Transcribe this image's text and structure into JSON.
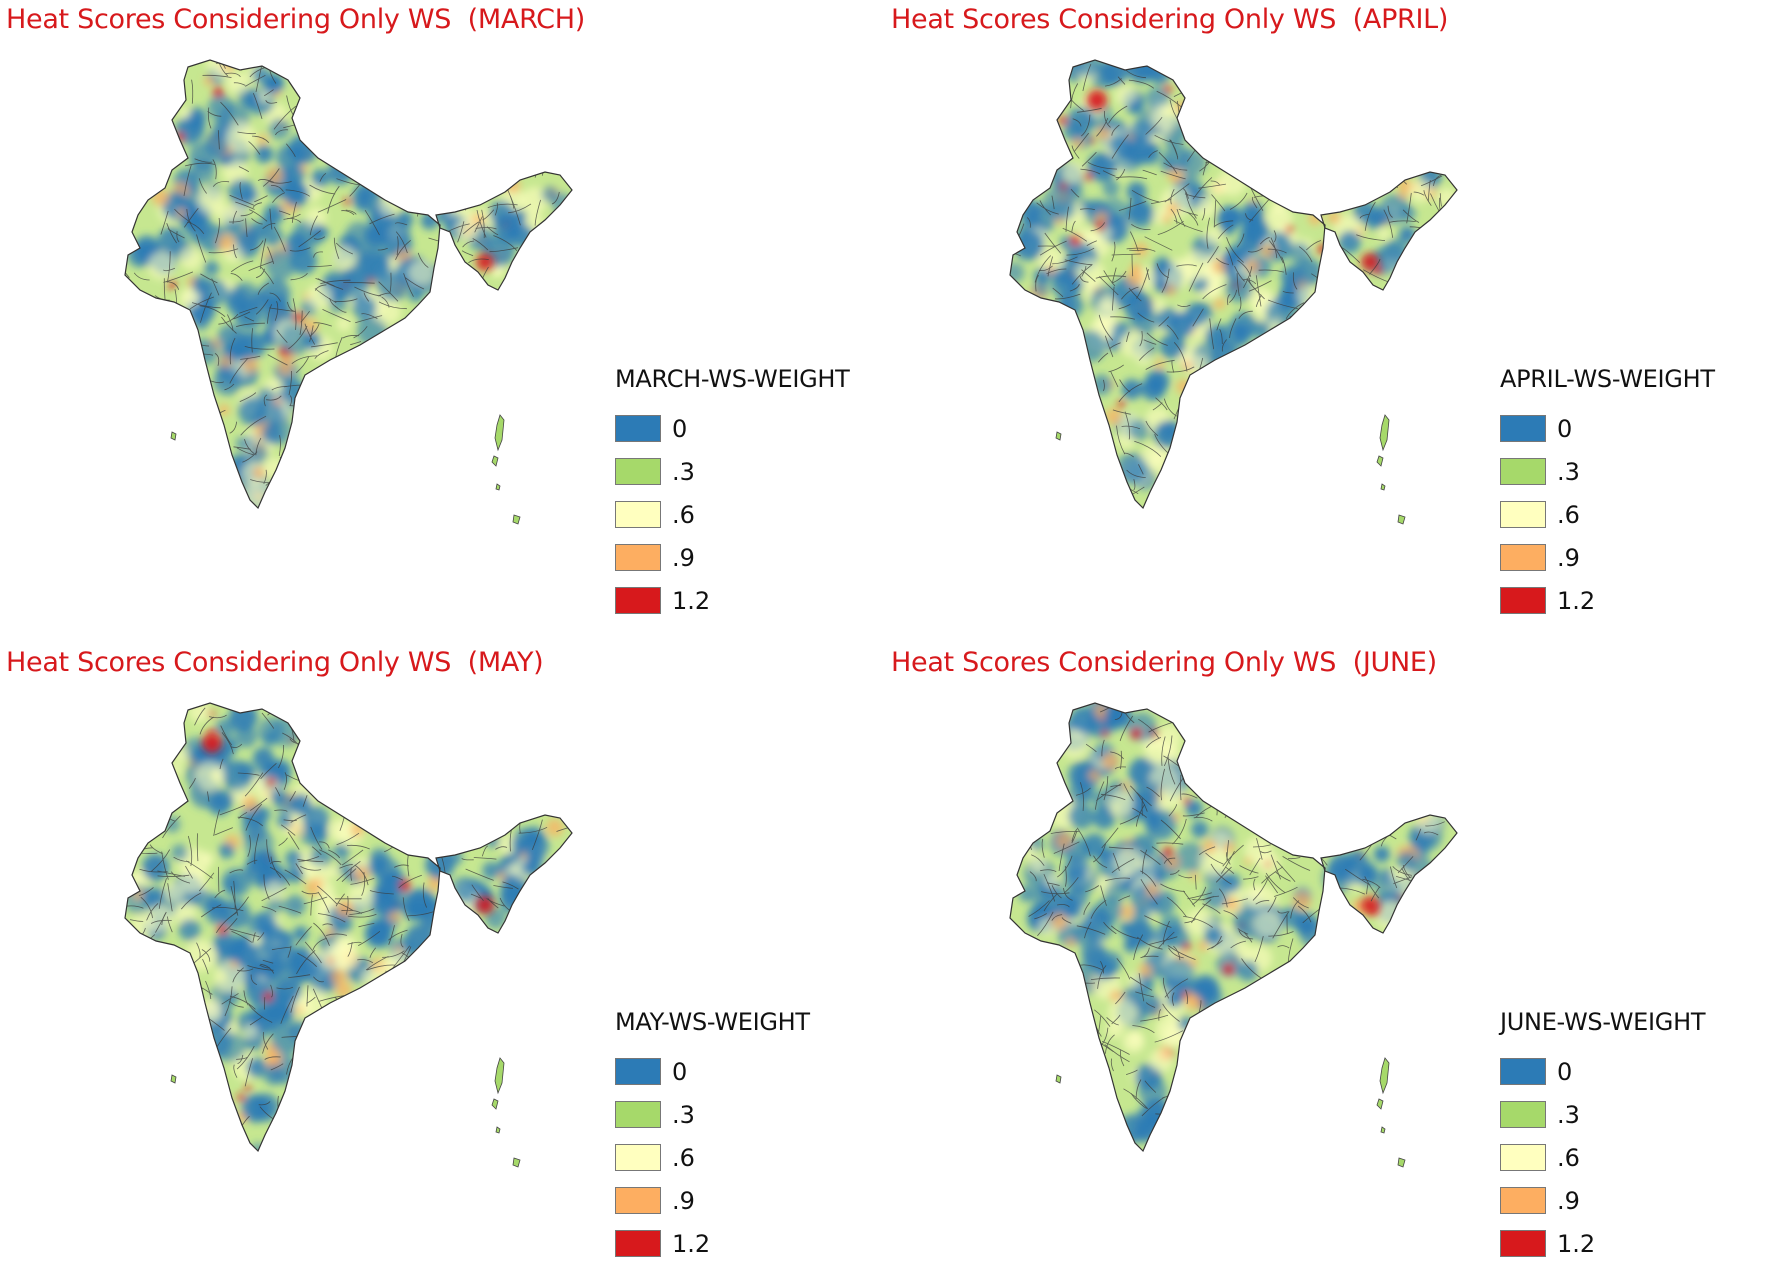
{
  "legend_colors": [
    "#2c7bb6",
    "#a6d96a",
    "#ffffbf",
    "#fdae61",
    "#d7191c"
  ],
  "legend_labels": [
    "0",
    ".3",
    ".6",
    ".9",
    "1.2"
  ],
  "panels": [
    {
      "title": "Heat Scores Considering Only WS  (MARCH)",
      "legend_title": "MARCH-WS-WEIGHT",
      "legend": [
        {
          "label": "0",
          "color": "#2c7bb6"
        },
        {
          "label": ".3",
          "color": "#a6d96a"
        },
        {
          "label": ".6",
          "color": "#ffffbf"
        },
        {
          "label": ".9",
          "color": "#fdae61"
        },
        {
          "label": "1.2",
          "color": "#d7191c"
        }
      ]
    },
    {
      "title": "Heat Scores Considering Only WS  (APRIL)",
      "legend_title": "APRIL-WS-WEIGHT",
      "legend": [
        {
          "label": "0",
          "color": "#2c7bb6"
        },
        {
          "label": ".3",
          "color": "#a6d96a"
        },
        {
          "label": ".6",
          "color": "#ffffbf"
        },
        {
          "label": ".9",
          "color": "#fdae61"
        },
        {
          "label": "1.2",
          "color": "#d7191c"
        }
      ]
    },
    {
      "title": "Heat Scores Considering Only WS  (MAY)",
      "legend_title": "MAY-WS-WEIGHT",
      "legend": [
        {
          "label": "0",
          "color": "#2c7bb6"
        },
        {
          "label": ".3",
          "color": "#a6d96a"
        },
        {
          "label": ".6",
          "color": "#ffffbf"
        },
        {
          "label": ".9",
          "color": "#fdae61"
        },
        {
          "label": "1.2",
          "color": "#d7191c"
        }
      ]
    },
    {
      "title": "Heat Scores Considering Only WS  (JUNE)",
      "legend_title": "JUNE-WS-WEIGHT",
      "legend": [
        {
          "label": "0",
          "color": "#2c7bb6"
        },
        {
          "label": ".3",
          "color": "#a6d96a"
        },
        {
          "label": ".6",
          "color": "#ffffbf"
        },
        {
          "label": ".9",
          "color": "#fdae61"
        },
        {
          "label": "1.2",
          "color": "#d7191c"
        }
      ]
    }
  ]
}
